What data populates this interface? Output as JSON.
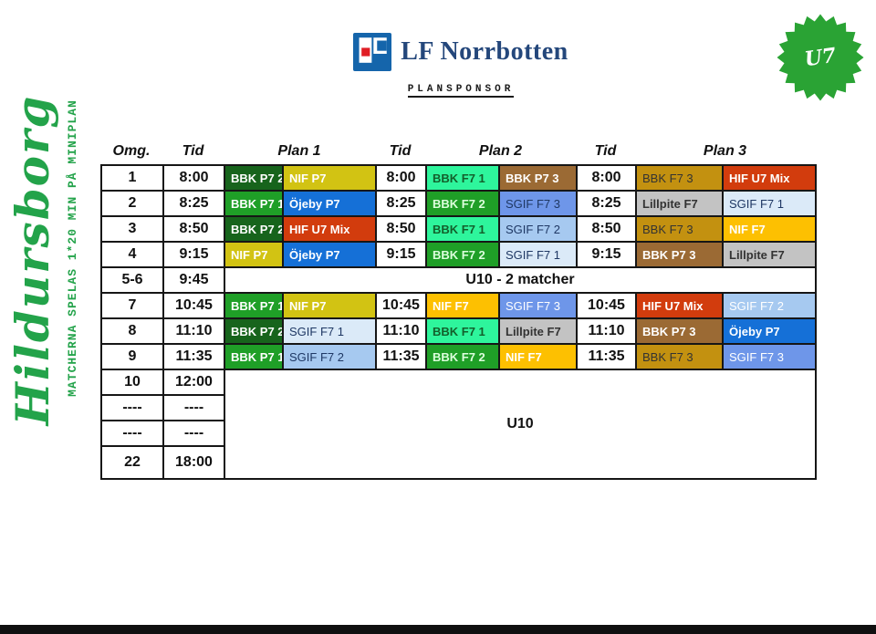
{
  "branding": {
    "venue_script": "Hildursborg",
    "venue_note": "MATCHERNA SPELAS 1*20 MIN PÅ MINIPLAN",
    "green": "#23a34a"
  },
  "sponsor": {
    "name": "LF Norrbotten",
    "label": "PLANSPONSOR",
    "logo_blue": "#1565ab",
    "logo_red": "#e01e25",
    "name_color": "#24477b"
  },
  "badge": {
    "text": "U7",
    "color": "#2aa334"
  },
  "table": {
    "headers": [
      "Omg.",
      "Tid",
      "Plan 1",
      "Tid",
      "Plan 2",
      "Tid",
      "Plan 3"
    ],
    "rows": [
      {
        "type": "match",
        "round": "1",
        "t1": "8:00",
        "t2": "8:00",
        "t3": "8:00",
        "p1": [
          {
            "text": "BBK P7 2",
            "bg": "#17641c",
            "fg": "#ffffff",
            "bold": true
          },
          {
            "text": "NIF P7",
            "bg": "#d2c313",
            "fg": "#ffffff",
            "bold": true
          }
        ],
        "p2": [
          {
            "text": "BBK F7 1",
            "bg": "#2ef59c",
            "fg": "#135f2b",
            "bold": true
          },
          {
            "text": "BBK P7 3",
            "bg": "#9b6a34",
            "fg": "#ffffff",
            "bold": true
          }
        ],
        "p3": [
          {
            "text": "BBK F7 3",
            "bg": "#c39110",
            "fg": "#333333",
            "bold": false
          },
          {
            "text": "HIF U7 Mix",
            "bg": "#d23c0d",
            "fg": "#ffffff",
            "bold": true
          }
        ]
      },
      {
        "type": "match",
        "round": "2",
        "t1": "8:25",
        "t2": "8:25",
        "t3": "8:25",
        "p1": [
          {
            "text": "BBK P7 1",
            "bg": "#1f9f27",
            "fg": "#ffffff",
            "bold": true
          },
          {
            "text": "Öjeby P7",
            "bg": "#1570d7",
            "fg": "#ffffff",
            "bold": true
          }
        ],
        "p2": [
          {
            "text": "BBK F7 2",
            "bg": "#1f9f27",
            "fg": "#ddffdd",
            "bold": true
          },
          {
            "text": "SGIF F7 3",
            "bg": "#6e96e9",
            "fg": "#1f3864",
            "bold": false
          }
        ],
        "p3": [
          {
            "text": "Lillpite F7",
            "bg": "#c3c3c3",
            "fg": "#333333",
            "bold": true
          },
          {
            "text": "SGIF F7 1",
            "bg": "#dbeaf8",
            "fg": "#1f3864",
            "bold": false
          }
        ]
      },
      {
        "type": "match",
        "round": "3",
        "t1": "8:50",
        "t2": "8:50",
        "t3": "8:50",
        "p1": [
          {
            "text": "BBK P7 2",
            "bg": "#17641c",
            "fg": "#ffffff",
            "bold": true
          },
          {
            "text": "HIF U7 Mix",
            "bg": "#d23c0d",
            "fg": "#ffffff",
            "bold": true
          }
        ],
        "p2": [
          {
            "text": "BBK F7 1",
            "bg": "#2ef59c",
            "fg": "#135f2b",
            "bold": true
          },
          {
            "text": "SGIF F7 2",
            "bg": "#a6c9f0",
            "fg": "#1f3864",
            "bold": false
          }
        ],
        "p3": [
          {
            "text": "BBK F7 3",
            "bg": "#c39110",
            "fg": "#333333",
            "bold": false
          },
          {
            "text": "NIF F7",
            "bg": "#fdc001",
            "fg": "#ffffff",
            "bold": true
          }
        ]
      },
      {
        "type": "match",
        "round": "4",
        "t1": "9:15",
        "t2": "9:15",
        "t3": "9:15",
        "p1": [
          {
            "text": "NIF P7",
            "bg": "#d2c313",
            "fg": "#ffffff",
            "bold": true
          },
          {
            "text": "Öjeby P7",
            "bg": "#1570d7",
            "fg": "#ffffff",
            "bold": true
          }
        ],
        "p2": [
          {
            "text": "BBK F7 2",
            "bg": "#1f9f27",
            "fg": "#ddffdd",
            "bold": true
          },
          {
            "text": "SGIF F7 1",
            "bg": "#dbeaf8",
            "fg": "#1f3864",
            "bold": false
          }
        ],
        "p3": [
          {
            "text": "BBK P7 3",
            "bg": "#9b6a34",
            "fg": "#ffffff",
            "bold": true
          },
          {
            "text": "Lillpite F7",
            "bg": "#c3c3c3",
            "fg": "#333333",
            "bold": true
          }
        ]
      },
      {
        "type": "span",
        "round": "5-6",
        "t1": "9:45",
        "label": "U10 - 2 matcher"
      },
      {
        "type": "match",
        "round": "7",
        "t1": "10:45",
        "t2": "10:45",
        "t3": "10:45",
        "p1": [
          {
            "text": "BBK P7 1",
            "bg": "#1f9f27",
            "fg": "#ffffff",
            "bold": true
          },
          {
            "text": "NIF P7",
            "bg": "#d2c313",
            "fg": "#ffffff",
            "bold": true
          }
        ],
        "p2": [
          {
            "text": "NIF F7",
            "bg": "#fdc001",
            "fg": "#ffffff",
            "bold": true
          },
          {
            "text": "SGIF F7 3",
            "bg": "#6e96e9",
            "fg": "#ffffff",
            "bold": false
          }
        ],
        "p3": [
          {
            "text": "HIF U7 Mix",
            "bg": "#d23c0d",
            "fg": "#ffffff",
            "bold": true
          },
          {
            "text": "SGIF F7 2",
            "bg": "#a6c9f0",
            "fg": "#ffffff",
            "bold": false
          }
        ]
      },
      {
        "type": "match",
        "round": "8",
        "t1": "11:10",
        "t2": "11:10",
        "t3": "11:10",
        "p1": [
          {
            "text": "BBK P7 2",
            "bg": "#17641c",
            "fg": "#ffffff",
            "bold": true
          },
          {
            "text": "SGIF F7 1",
            "bg": "#dbeaf8",
            "fg": "#1f3864",
            "bold": false
          }
        ],
        "p2": [
          {
            "text": "BBK F7 1",
            "bg": "#2ef59c",
            "fg": "#135f2b",
            "bold": true
          },
          {
            "text": "Lillpite F7",
            "bg": "#c3c3c3",
            "fg": "#333333",
            "bold": true
          }
        ],
        "p3": [
          {
            "text": "BBK P7 3",
            "bg": "#9b6a34",
            "fg": "#ffffff",
            "bold": true
          },
          {
            "text": "Öjeby P7",
            "bg": "#1570d7",
            "fg": "#ffffff",
            "bold": true
          }
        ]
      },
      {
        "type": "match",
        "round": "9",
        "t1": "11:35",
        "t2": "11:35",
        "t3": "11:35",
        "p1": [
          {
            "text": "BBK P7 1",
            "bg": "#1f9f27",
            "fg": "#ffffff",
            "bold": true
          },
          {
            "text": "SGIF F7 2",
            "bg": "#a6c9f0",
            "fg": "#1f3864",
            "bold": false
          }
        ],
        "p2": [
          {
            "text": "BBK F7 2",
            "bg": "#1f9f27",
            "fg": "#ddffdd",
            "bold": true
          },
          {
            "text": "NIF F7",
            "bg": "#fdc001",
            "fg": "#ffffff",
            "bold": true
          }
        ],
        "p3": [
          {
            "text": "BBK F7 3",
            "bg": "#c39110",
            "fg": "#333333",
            "bold": false
          },
          {
            "text": "SGIF F7 3",
            "bg": "#6e96e9",
            "fg": "#ffffff",
            "bold": false
          }
        ]
      },
      {
        "type": "block",
        "label": "U10",
        "entries": [
          [
            "10",
            "12:00"
          ],
          [
            "----",
            "----"
          ],
          [
            "----",
            "----"
          ],
          [
            "22",
            "18:00"
          ]
        ]
      }
    ]
  }
}
